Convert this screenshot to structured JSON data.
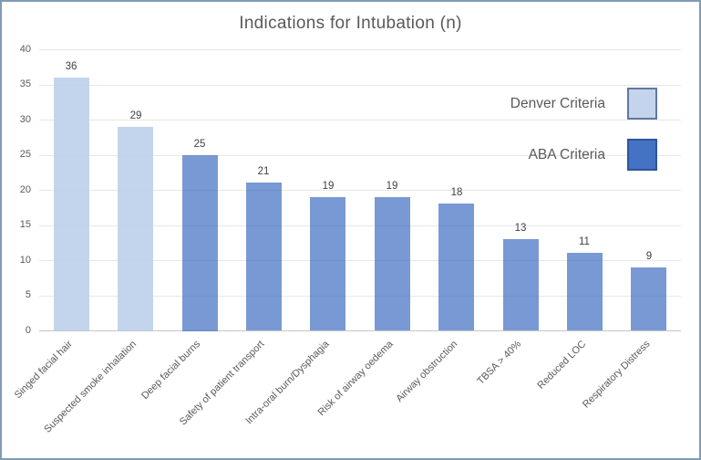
{
  "chart_data": {
    "type": "bar",
    "title": "Indications for Intubation (n)",
    "categories": [
      "Singed facial hair",
      "Suspected smoke inhalation",
      "Deep facial burns",
      "Safety of patient transport",
      "Intra-oral burn/Dysphagia",
      "Risk of airway oedema",
      "Airway obstruction",
      "TBSA > 40%",
      "Reduced LOC",
      "Respiratory Distress"
    ],
    "values": [
      36,
      29,
      25,
      21,
      19,
      19,
      18,
      13,
      11,
      9
    ],
    "bar_groups": [
      "denver",
      "denver",
      "aba",
      "aba",
      "aba",
      "aba",
      "aba",
      "aba",
      "aba",
      "aba"
    ],
    "xlabel": "",
    "ylabel": "",
    "ylim": [
      0,
      40
    ],
    "yticks": [
      0,
      5,
      10,
      15,
      20,
      25,
      30,
      35,
      40
    ],
    "grid": true,
    "legend_position": "upper right",
    "legend": [
      {
        "key": "denver",
        "label": "Denver Criteria",
        "fill": "#c4d4ed",
        "border": "#60799f"
      },
      {
        "key": "aba",
        "label": "ABA Criteria",
        "fill": "#4472c4",
        "border": "#2e5597"
      }
    ],
    "bar_fills": {
      "denver": "rgba(189,208,235,0.9)",
      "aba": "rgba(68,114,196,0.72)"
    }
  },
  "colors": {
    "title_text": "#595959",
    "axis_text": "#595959",
    "value_text": "#3f3f3f",
    "gridline": "#e7e7e7",
    "axis_line": "#c6c6c6",
    "frame_border": "#7e9cb5",
    "background": "#ffffff"
  }
}
